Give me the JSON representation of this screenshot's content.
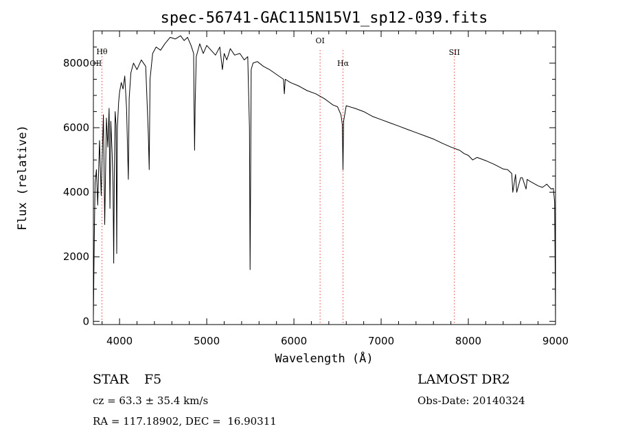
{
  "chart_data": {
    "type": "line",
    "title": "spec-56741-GAC115N15V1_sp12-039.fits",
    "xlabel": "Wavelength (Å)",
    "ylabel": "Flux (relative)",
    "xlim": [
      3700,
      9000
    ],
    "ylim": [
      -100,
      9000
    ],
    "xticks": [
      4000,
      5000,
      6000,
      7000,
      8000,
      9000
    ],
    "yticks": [
      0,
      2000,
      4000,
      6000,
      8000
    ],
    "x_tick_labels": [
      "4000",
      "5000",
      "6000",
      "7000",
      "8000",
      "9000"
    ],
    "y_tick_labels": [
      "0",
      "2000",
      "4000",
      "6000",
      "8000"
    ],
    "grid": false,
    "series": [
      {
        "x": [
          3700,
          3710,
          3720,
          3735,
          3750,
          3770,
          3790,
          3800,
          3815,
          3830,
          3850,
          3865,
          3880,
          3890,
          3900,
          3915,
          3925,
          3933,
          3940,
          3950,
          3960,
          3968,
          3975,
          3990,
          4000,
          4020,
          4040,
          4060,
          4080,
          4101,
          4110,
          4130,
          4160,
          4200,
          4250,
          4300,
          4330,
          4340,
          4350,
          4380,
          4420,
          4470,
          4520,
          4580,
          4640,
          4700,
          4740,
          4780,
          4820,
          4850,
          4855,
          4861,
          4867,
          4880,
          4920,
          4960,
          5000,
          5050,
          5100,
          5150,
          5180,
          5200,
          5230,
          5270,
          5320,
          5380,
          5430,
          5470,
          5490,
          5497,
          5504,
          5510,
          5530,
          5580,
          5650,
          5720,
          5800,
          5880,
          5890,
          5900,
          5960,
          6050,
          6150,
          6250,
          6350,
          6400,
          6450,
          6500,
          6540,
          6555,
          6563,
          6570,
          6600,
          6700,
          6800,
          6900,
          7000,
          7100,
          7200,
          7300,
          7400,
          7500,
          7600,
          7700,
          7800,
          7900,
          7950,
          8000,
          8050,
          8100,
          8200,
          8300,
          8400,
          8450,
          8498,
          8510,
          8542,
          8555,
          8600,
          8620,
          8662,
          8675,
          8700,
          8800,
          8850,
          8900,
          8950,
          8975,
          8990,
          8995,
          9000
        ],
        "y": [
          100,
          2600,
          4300,
          4700,
          3600,
          5600,
          3900,
          5000,
          6400,
          3000,
          6300,
          5400,
          6600,
          3500,
          6200,
          5200,
          4200,
          1800,
          4600,
          6500,
          6100,
          2100,
          6000,
          6800,
          7100,
          7400,
          7200,
          7600,
          6600,
          4400,
          6900,
          7700,
          8000,
          7800,
          8100,
          7900,
          5800,
          4700,
          7500,
          8300,
          8500,
          8400,
          8600,
          8800,
          8750,
          8850,
          8700,
          8800,
          8550,
          8300,
          6500,
          5300,
          6700,
          8200,
          8600,
          8300,
          8550,
          8400,
          8250,
          8500,
          7800,
          8300,
          8100,
          8450,
          8250,
          8300,
          8100,
          8200,
          6000,
          1600,
          4800,
          7800,
          8000,
          8050,
          7900,
          7800,
          7650,
          7500,
          7050,
          7500,
          7400,
          7300,
          7150,
          7050,
          6900,
          6800,
          6700,
          6650,
          6400,
          6100,
          4700,
          6200,
          6680,
          6600,
          6500,
          6350,
          6250,
          6150,
          6050,
          5950,
          5850,
          5750,
          5650,
          5520,
          5400,
          5300,
          5200,
          5140,
          5000,
          5080,
          4980,
          4860,
          4720,
          4700,
          4580,
          4000,
          4550,
          4000,
          4450,
          4450,
          4100,
          4400,
          4350,
          4200,
          4150,
          4250,
          4100,
          4120,
          3700,
          1900,
          0
        ]
      }
    ],
    "line_annotations": [
      {
        "label": "Hθ",
        "x": 3798
      },
      {
        "label": "OII",
        "x": 3727
      },
      {
        "label": "OI",
        "x": 6300
      },
      {
        "label": "Hα",
        "x": 6563
      },
      {
        "label": "SII",
        "x": 7840
      }
    ],
    "colors": {
      "line": "#000000",
      "annotation_line": "#e83a3a"
    }
  },
  "info": {
    "object_class": "STAR",
    "subclass": "F5",
    "survey": "LAMOST DR2",
    "redshift": "cz = 63.3 ± 35.4 km/s",
    "obs_date": "Obs-Date: 20140324",
    "coords": "RA = 117.18902, DEC =  16.90311"
  }
}
